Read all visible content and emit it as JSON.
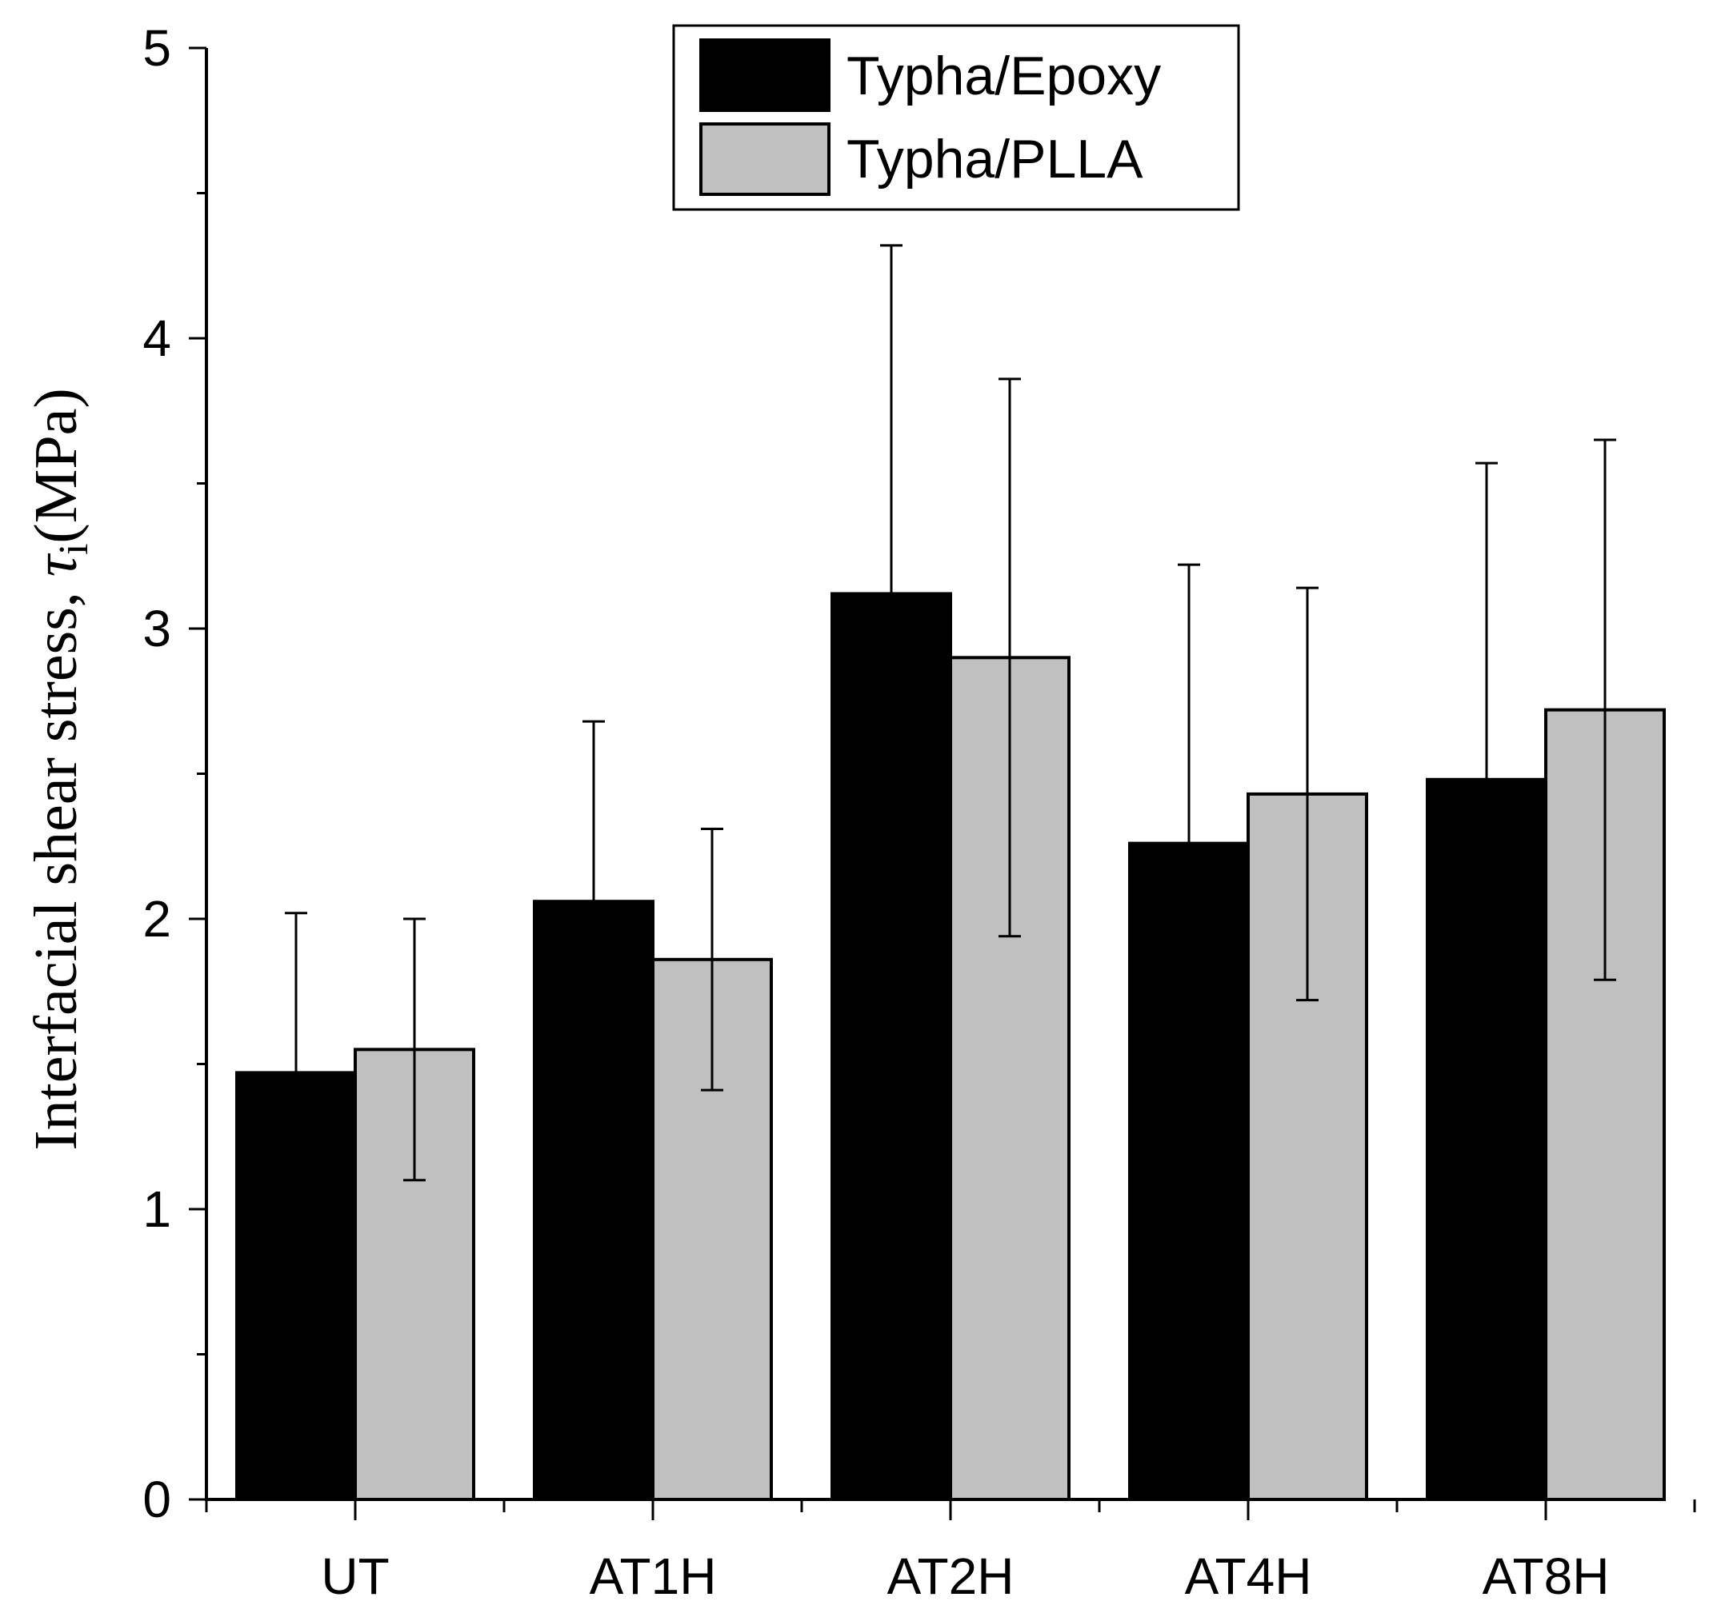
{
  "chart_data": {
    "type": "bar",
    "title": "",
    "xlabel": "",
    "ylabel_main": "Interfacial shear stress, ",
    "ylabel_symbol": "τ",
    "ylabel_subscript": "i",
    "ylabel_unit": "(MPa)",
    "ylim": [
      0,
      5
    ],
    "yticks": [
      "0",
      "1",
      "2",
      "3",
      "4",
      "5"
    ],
    "categories": [
      "UT",
      "AT1H",
      "AT2H",
      "AT4H",
      "AT8H"
    ],
    "series": [
      {
        "name": "Typha/Epoxy",
        "color": "#000000",
        "values": [
          1.47,
          2.06,
          3.12,
          2.26,
          2.48
        ],
        "errors": [
          0.55,
          0.62,
          1.2,
          0.96,
          1.09
        ]
      },
      {
        "name": "Typha/PLLA",
        "color": "#c0c0c0",
        "values": [
          1.55,
          1.86,
          2.9,
          2.43,
          2.72
        ],
        "errors": [
          0.45,
          0.45,
          0.96,
          0.71,
          0.93
        ]
      }
    ],
    "legend_position": "top-center",
    "grid": false
  }
}
